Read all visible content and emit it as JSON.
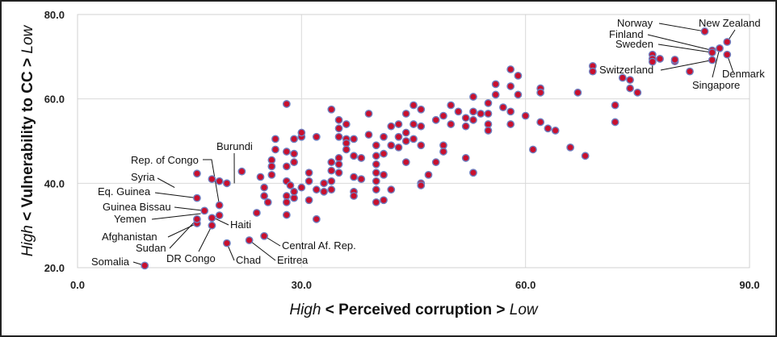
{
  "chart_data": {
    "type": "scatter",
    "title": "",
    "xlabel": {
      "prefix": "High",
      "middle": " < Perceived corruption > ",
      "suffix": "Low"
    },
    "ylabel": {
      "prefix": "High",
      "middle": " < Vulnerability to CC > ",
      "suffix": "Low"
    },
    "xlim": [
      0,
      90
    ],
    "ylim": [
      20,
      80
    ],
    "x_ticks": [
      "0.0",
      "30.0",
      "60.0",
      "90.0"
    ],
    "y_ticks": [
      "20.0",
      "40.0",
      "60.0",
      "80.0"
    ],
    "grid": true,
    "marker_color": "#c8102e",
    "marker_edge_color": "#6f7fc0",
    "points": [
      [
        9,
        20.5
      ],
      [
        16,
        30.5
      ],
      [
        16,
        31.5
      ],
      [
        17,
        33.5
      ],
      [
        16,
        36.5
      ],
      [
        16,
        42.3
      ],
      [
        18,
        30
      ],
      [
        18,
        31.8
      ],
      [
        18,
        41
      ],
      [
        19,
        32.4
      ],
      [
        19,
        34.8
      ],
      [
        19,
        40.5
      ],
      [
        20,
        25.8
      ],
      [
        20,
        40
      ],
      [
        22,
        42.8
      ],
      [
        23,
        26.5
      ],
      [
        24,
        33
      ],
      [
        25,
        27.5
      ],
      [
        26,
        45.5
      ],
      [
        25,
        39
      ],
      [
        26,
        42
      ],
      [
        26,
        44
      ],
      [
        24.5,
        41.5
      ],
      [
        25,
        37
      ],
      [
        25.5,
        35.5
      ],
      [
        26.5,
        48
      ],
      [
        26.5,
        50.5
      ],
      [
        28,
        58.8
      ],
      [
        28,
        47.5
      ],
      [
        28,
        44
      ],
      [
        28,
        40.5
      ],
      [
        28,
        37
      ],
      [
        28,
        35.5
      ],
      [
        28,
        32.5
      ],
      [
        28.5,
        39.5
      ],
      [
        29,
        36.5
      ],
      [
        29,
        38
      ],
      [
        29,
        45
      ],
      [
        29,
        47
      ],
      [
        29,
        50.5
      ],
      [
        30,
        51
      ],
      [
        30,
        52
      ],
      [
        30,
        39
      ],
      [
        31,
        42.5
      ],
      [
        31,
        40.5
      ],
      [
        31,
        36
      ],
      [
        32,
        38.5
      ],
      [
        32,
        31.5
      ],
      [
        32,
        51
      ],
      [
        33,
        38
      ],
      [
        33,
        40
      ],
      [
        34,
        45
      ],
      [
        34,
        43
      ],
      [
        34,
        40.5
      ],
      [
        34,
        38.5
      ],
      [
        34,
        57.5
      ],
      [
        35,
        55
      ],
      [
        35,
        53
      ],
      [
        35,
        51
      ],
      [
        35,
        46
      ],
      [
        35,
        44.5
      ],
      [
        35,
        42.5
      ],
      [
        36,
        54
      ],
      [
        36,
        50.5
      ],
      [
        36,
        49.5
      ],
      [
        36,
        48
      ],
      [
        37,
        50.5
      ],
      [
        37,
        46.5
      ],
      [
        37,
        41.5
      ],
      [
        37,
        38
      ],
      [
        37,
        37
      ],
      [
        38,
        41
      ],
      [
        38,
        46
      ],
      [
        39,
        56.5
      ],
      [
        39,
        51.5
      ],
      [
        40,
        49
      ],
      [
        40,
        46.5
      ],
      [
        40,
        44.5
      ],
      [
        40,
        42.5
      ],
      [
        40,
        40.5
      ],
      [
        40,
        38.5
      ],
      [
        40,
        35.5
      ],
      [
        41,
        51
      ],
      [
        41,
        47
      ],
      [
        41,
        42
      ],
      [
        41,
        36
      ],
      [
        42,
        53.5
      ],
      [
        42,
        38.5
      ],
      [
        42,
        49
      ],
      [
        43,
        54
      ],
      [
        43,
        51
      ],
      [
        43,
        48.5
      ],
      [
        44,
        56.5
      ],
      [
        44,
        52
      ],
      [
        44,
        50
      ],
      [
        44,
        45
      ],
      [
        45,
        58.5
      ],
      [
        45,
        54
      ],
      [
        45,
        50.5
      ],
      [
        46,
        57.5
      ],
      [
        46,
        53.5
      ],
      [
        46,
        49
      ],
      [
        46,
        40
      ],
      [
        46,
        39.5
      ],
      [
        47,
        42
      ],
      [
        48,
        45
      ],
      [
        48,
        55
      ],
      [
        49,
        56
      ],
      [
        49,
        49
      ],
      [
        49,
        47.5
      ],
      [
        50,
        58.5
      ],
      [
        50,
        54
      ],
      [
        51,
        57
      ],
      [
        52,
        55.5
      ],
      [
        52,
        53.5
      ],
      [
        52,
        46
      ],
      [
        53,
        60.5
      ],
      [
        53,
        57
      ],
      [
        53,
        55
      ],
      [
        53,
        42.5
      ],
      [
        54,
        56.5
      ],
      [
        55,
        59
      ],
      [
        55,
        56.5
      ],
      [
        55,
        54
      ],
      [
        55,
        52.5
      ],
      [
        56,
        63.5
      ],
      [
        56,
        61
      ],
      [
        57,
        58
      ],
      [
        58,
        67
      ],
      [
        58,
        63
      ],
      [
        58,
        57
      ],
      [
        58,
        54
      ],
      [
        59,
        65.5
      ],
      [
        59,
        61
      ],
      [
        60,
        56
      ],
      [
        61,
        48
      ],
      [
        62,
        62.5
      ],
      [
        62,
        61.5
      ],
      [
        62,
        54.5
      ],
      [
        63,
        53
      ],
      [
        64,
        52.5
      ],
      [
        66,
        48.5
      ],
      [
        67,
        61.5
      ],
      [
        68,
        46.5
      ],
      [
        69,
        67.8
      ],
      [
        69,
        66.5
      ],
      [
        72,
        58.5
      ],
      [
        72,
        54.5
      ],
      [
        73,
        65
      ],
      [
        74,
        64.5
      ],
      [
        74,
        62.5
      ],
      [
        75,
        61.5
      ],
      [
        77,
        70.5
      ],
      [
        77,
        69.5
      ],
      [
        77,
        68.8
      ],
      [
        78,
        69.5
      ],
      [
        80,
        68.9
      ],
      [
        80,
        69.3
      ],
      [
        82,
        66.5
      ],
      [
        84,
        76
      ],
      [
        85,
        71.5
      ],
      [
        85,
        71
      ],
      [
        85,
        69.2
      ],
      [
        86,
        72
      ],
      [
        87,
        73.5
      ],
      [
        87,
        70.5
      ]
    ],
    "annotations": [
      {
        "label": "Somalia",
        "x": 9,
        "y": 20.5
      },
      {
        "label": "Afghanistan",
        "x": 16,
        "y": 30.5
      },
      {
        "label": "Sudan",
        "x": 16,
        "y": 31.5
      },
      {
        "label": "Yemen",
        "x": 16.5,
        "y": 32.8
      },
      {
        "label": "Guinea Bissau",
        "x": 17,
        "y": 33.5
      },
      {
        "label": "Eq. Guinea",
        "x": 16,
        "y": 36.5
      },
      {
        "label": "Syria",
        "x": 13,
        "y": 39
      },
      {
        "label": "Rep. of Congo",
        "x": 19,
        "y": 34.8
      },
      {
        "label": "Burundi",
        "x": 21,
        "y": 40
      },
      {
        "label": "Haiti",
        "x": 18,
        "y": 32
      },
      {
        "label": "DR Congo",
        "x": 18,
        "y": 30
      },
      {
        "label": "Chad",
        "x": 20,
        "y": 25.8
      },
      {
        "label": "Eritrea",
        "x": 23,
        "y": 26.5
      },
      {
        "label": "Central Af. Rep.",
        "x": 25,
        "y": 27.5
      },
      {
        "label": "Norway",
        "x": 84,
        "y": 76
      },
      {
        "label": "New Zealand",
        "x": 87,
        "y": 73.5
      },
      {
        "label": "Finland",
        "x": 85,
        "y": 71.5
      },
      {
        "label": "Sweden",
        "x": 85,
        "y": 71
      },
      {
        "label": "Switzerland",
        "x": 85,
        "y": 69.2
      },
      {
        "label": "Denmark",
        "x": 87,
        "y": 70.5
      },
      {
        "label": "Singapore",
        "x": 86,
        "y": 72
      }
    ]
  }
}
